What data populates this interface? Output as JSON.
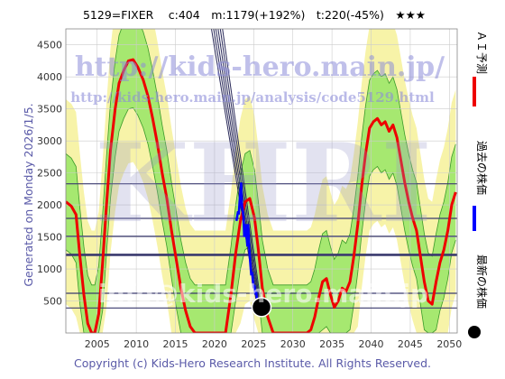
{
  "header": {
    "text": "5129=FIXER　 c:404　m:1179(+192%)　t:220(-45%)　★★★"
  },
  "watermarks": {
    "url": "http://kids-hero.main.jp/",
    "url2": "http://kids-hero.main.jp/analysis/code5129.html",
    "logo": "KHRI",
    "info": "info@kids-hero.main.jp"
  },
  "side_left": "Generated on Monday 2026/1/5.",
  "legend": [
    {
      "label": "ＡＩ予測",
      "color": "#ee0000",
      "marker": "line"
    },
    {
      "label": "過去の株価",
      "color": "#0000ff",
      "marker": "line"
    },
    {
      "label": "最新の株価",
      "color": "#000000",
      "marker": "dot"
    }
  ],
  "footer": "Copyright (c) Kids-Hero Research Institute. All Rights Reserved.",
  "colors": {
    "ai": "#ee0000",
    "past": "#0000ff",
    "band_outer": "#f7f3a8",
    "band_inner": "#a6e870",
    "band_line": "#3a9a2a",
    "hline": "#3a3a6e",
    "trend": "#2a2a5a",
    "grid": "#cccccc",
    "axis_text": "#333333"
  },
  "chart_data": {
    "type": "line",
    "xlim": [
      2001,
      2051
    ],
    "ylim": [
      0,
      4750
    ],
    "xticks": [
      2005,
      2010,
      2015,
      2020,
      2025,
      2030,
      2035,
      2040,
      2045,
      2050
    ],
    "yticks": [
      500,
      1000,
      1500,
      2000,
      2500,
      3000,
      3500,
      4000,
      4500
    ],
    "grid": true,
    "hlines": [
      {
        "y": 2330,
        "w": 1.2
      },
      {
        "y": 1790,
        "w": 1.2
      },
      {
        "y": 1510,
        "w": 1.2
      },
      {
        "y": 1220,
        "w": 2.6
      },
      {
        "y": 620,
        "w": 1.2
      },
      {
        "y": 390,
        "w": 1.2
      }
    ],
    "latest": {
      "x": 2026.0,
      "y": 404
    },
    "ai_prediction": {
      "x": [
        2001.0,
        2001.7,
        2002.3,
        2002.8,
        2003.3,
        2003.8,
        2004.3,
        2004.7,
        2005.2,
        2005.7,
        2006.2,
        2006.7,
        2007.3,
        2007.8,
        2008.4,
        2009.0,
        2009.6,
        2010.2,
        2010.9,
        2011.5,
        2012.1,
        2012.7,
        2013.3,
        2013.9,
        2014.5,
        2015.1,
        2015.7,
        2016.3,
        2016.9,
        2017.5,
        2018.1,
        2018.5,
        2021.4,
        2022.1,
        2022.7,
        2023.3,
        2023.9,
        2024.5,
        2025.1,
        2025.6,
        2026.1,
        2026.8,
        2027.5,
        2028.1,
        2028.8,
        2029.4,
        2030.0,
        2030.6,
        2031.2,
        2031.8,
        2032.3,
        2032.8,
        2033.3,
        2033.8,
        2034.3,
        2034.8,
        2035.3,
        2035.8,
        2036.3,
        2036.8,
        2037.3,
        2037.8,
        2038.3,
        2038.8,
        2039.3,
        2039.8,
        2040.3,
        2040.8,
        2041.3,
        2041.8,
        2042.3,
        2042.8,
        2043.3,
        2043.8,
        2044.3,
        2044.8,
        2045.3,
        2045.8,
        2046.3,
        2046.8,
        2047.3,
        2047.8,
        2048.3,
        2048.8,
        2049.3,
        2049.8,
        2050.3,
        2050.8
      ],
      "y": [
        2050,
        1980,
        1850,
        1200,
        600,
        150,
        0,
        0,
        300,
        1100,
        2000,
        2850,
        3500,
        3900,
        4100,
        4250,
        4270,
        4150,
        3950,
        3700,
        3350,
        2950,
        2500,
        2100,
        1600,
        1150,
        700,
        350,
        100,
        0,
        0,
        0,
        0,
        600,
        1250,
        1750,
        2050,
        2100,
        1800,
        1300,
        700,
        250,
        0,
        0,
        0,
        0,
        0,
        0,
        0,
        0,
        50,
        250,
        550,
        800,
        850,
        600,
        400,
        500,
        700,
        650,
        800,
        1200,
        1700,
        2300,
        2800,
        3200,
        3300,
        3350,
        3250,
        3300,
        3150,
        3250,
        3050,
        2700,
        2350,
        2050,
        1800,
        1600,
        1200,
        800,
        500,
        450,
        800,
        1100,
        1300,
        1600,
        2000,
        2200
      ]
    },
    "past_price": {
      "x": [
        2022.8,
        2023.0,
        2023.1,
        2023.2,
        2023.3,
        2023.4,
        2023.5,
        2023.6,
        2023.7,
        2023.8,
        2023.9,
        2024.0,
        2024.1,
        2024.2,
        2024.3,
        2024.4,
        2024.5,
        2024.6,
        2024.7,
        2024.8,
        2024.9,
        2025.0,
        2025.1,
        2025.2,
        2025.3,
        2025.4,
        2025.5,
        2025.6,
        2025.7,
        2025.8,
        2025.9,
        2026.0
      ],
      "y": [
        1750,
        1900,
        1850,
        2050,
        2200,
        2350,
        2000,
        1900,
        1800,
        1500,
        1650,
        1700,
        1500,
        1350,
        1700,
        1400,
        1200,
        1050,
        900,
        950,
        800,
        700,
        750,
        600,
        650,
        550,
        500,
        480,
        450,
        430,
        420,
        404
      ]
    }
  }
}
